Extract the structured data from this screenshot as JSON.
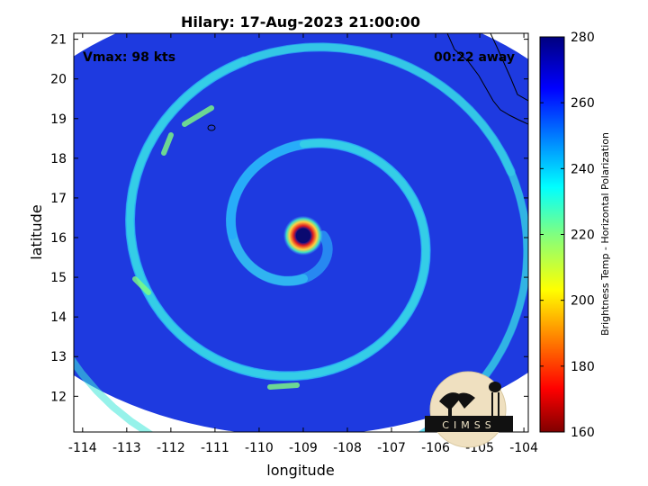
{
  "chart_data": {
    "type": "heatmap",
    "title": "Hilary: 17-Aug-2023 21:00:00",
    "xlabel": "longitude",
    "ylabel": "latitude",
    "xlim": [
      -114.2,
      -103.9
    ],
    "ylim": [
      11.1,
      21.15
    ],
    "xticks": [
      -114,
      -113,
      -112,
      -111,
      -110,
      -109,
      -108,
      -107,
      -106,
      -105,
      -104
    ],
    "yticks": [
      12,
      13,
      14,
      15,
      16,
      17,
      18,
      19,
      20,
      21
    ],
    "grid": false,
    "storm_center": {
      "lon": -109.0,
      "lat": 16.05
    },
    "swath": {
      "center_lon": -109.1,
      "center_lat": 16.55,
      "lon_radius": 7.4,
      "lat_radius": 5.55
    },
    "colorbar": {
      "label": "Brightness Temp - Horizontal Polarization",
      "range": [
        160,
        280
      ],
      "ticks": [
        160,
        180,
        200,
        220,
        240,
        260,
        280
      ],
      "colormap": "jet"
    },
    "annotations": {
      "vmax": "Vmax: 98 kts",
      "time_offset": "00:22 away"
    }
  },
  "logo": {
    "text": "CIMSS"
  },
  "colors": {
    "background_cold": "#1f2fd6",
    "eye": "#0a0a70",
    "eyewall_hot": "#e01010",
    "coastline": "#000000"
  }
}
